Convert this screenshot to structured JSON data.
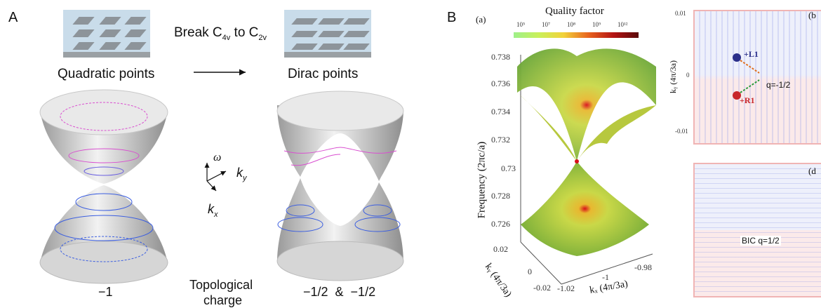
{
  "panelA": {
    "letter": "A",
    "left_label": "Quadratic points",
    "right_label": "Dirac points",
    "break_text": "Break C",
    "break_sub1": "4v",
    "break_mid": " to C",
    "break_sub2": "2v",
    "axis_omega": "ω",
    "axis_ky": "k",
    "axis_ky_sub": "y",
    "axis_kx": "k",
    "axis_kx_sub": "x",
    "charge_left": "−1",
    "charge_title_1": "Topological",
    "charge_title_2": "charge",
    "charge_right": "−1/2  &  −1/2"
  },
  "panelB": {
    "letter": "B",
    "sub_a": "(a)",
    "colorbar_title": "Quality factor",
    "colorbar_ticks": [
      "10⁵",
      "10⁷",
      "10⁸",
      "10⁹",
      "10¹²"
    ],
    "ylabel": "Frequency  (2πc/a)",
    "yticks": [
      "0.738",
      "0.736",
      "0.734",
      "0.732",
      "0.73",
      "0.728",
      "0.726"
    ],
    "ky_label": "kᵧ (4π/3a)",
    "ky_ticks": [
      "0.02",
      "0",
      "-0.02"
    ],
    "kx_label": "kₓ (4π/3a)",
    "kx_ticks": [
      "-1.02",
      "-1",
      "-0.98"
    ],
    "sub_b": "(b",
    "sub_d": "(d",
    "b_yticks": [
      "0.01",
      "0",
      "-0.01"
    ],
    "b_ylabel": "kᵧ (4π/3a)",
    "L1": "+L1",
    "R1": "+R1",
    "q_b": "q=-1/2",
    "bic_label": "BIC  q=1/2"
  },
  "colors": {
    "magenta": "#d94fd0",
    "blue": "#3b5ee0",
    "L1": "#2b2f8a",
    "R1": "#c8262b"
  }
}
